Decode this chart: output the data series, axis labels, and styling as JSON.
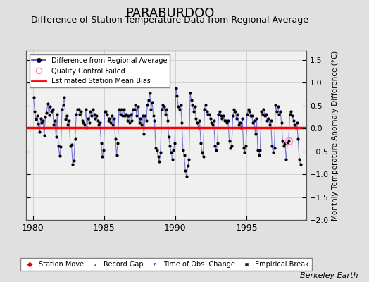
{
  "title": "PARABURDOO",
  "subtitle": "Difference of Station Temperature Data from Regional Average",
  "ylabel": "Monthly Temperature Anomaly Difference (°C)",
  "xlim": [
    1979.5,
    1999.2
  ],
  "ylim": [
    -2.0,
    1.7
  ],
  "yticks": [
    -2.0,
    -1.5,
    -1.0,
    -0.5,
    0.0,
    0.5,
    1.0,
    1.5
  ],
  "xticks": [
    1980,
    1985,
    1990,
    1995
  ],
  "bias_value": 0.02,
  "background_color": "#e0e0e0",
  "plot_bg_color": "#f0f0f0",
  "line_color": "#4444cc",
  "bias_color": "#ff0000",
  "marker_color": "#000000",
  "title_fontsize": 13,
  "subtitle_fontsize": 9,
  "berkeley_earth_text": "Berkeley Earth",
  "time_values": [
    1980.042,
    1980.125,
    1980.208,
    1980.292,
    1980.375,
    1980.458,
    1980.542,
    1980.625,
    1980.708,
    1980.792,
    1980.875,
    1980.958,
    1981.042,
    1981.125,
    1981.208,
    1981.292,
    1981.375,
    1981.458,
    1981.542,
    1981.625,
    1981.708,
    1981.792,
    1981.875,
    1981.958,
    1982.042,
    1982.125,
    1982.208,
    1982.292,
    1982.375,
    1982.458,
    1982.542,
    1982.625,
    1982.708,
    1982.792,
    1982.875,
    1982.958,
    1983.042,
    1983.125,
    1983.208,
    1983.292,
    1983.375,
    1983.458,
    1983.542,
    1983.625,
    1983.708,
    1983.792,
    1983.875,
    1983.958,
    1984.042,
    1984.125,
    1984.208,
    1984.292,
    1984.375,
    1984.458,
    1984.542,
    1984.625,
    1984.708,
    1984.792,
    1984.875,
    1984.958,
    1985.042,
    1985.125,
    1985.208,
    1985.292,
    1985.375,
    1985.458,
    1985.542,
    1985.625,
    1985.708,
    1985.792,
    1985.875,
    1985.958,
    1986.042,
    1986.125,
    1986.208,
    1986.292,
    1986.375,
    1986.458,
    1986.542,
    1986.625,
    1986.708,
    1986.792,
    1986.875,
    1986.958,
    1987.042,
    1987.125,
    1987.208,
    1987.292,
    1987.375,
    1987.458,
    1987.542,
    1987.625,
    1987.708,
    1987.792,
    1987.875,
    1987.958,
    1988.042,
    1988.125,
    1988.208,
    1988.292,
    1988.375,
    1988.458,
    1988.542,
    1988.625,
    1988.708,
    1988.792,
    1988.875,
    1988.958,
    1989.042,
    1989.125,
    1989.208,
    1989.292,
    1989.375,
    1989.458,
    1989.542,
    1989.625,
    1989.708,
    1989.792,
    1989.875,
    1989.958,
    1990.042,
    1990.125,
    1990.208,
    1990.292,
    1990.375,
    1990.458,
    1990.542,
    1990.625,
    1990.708,
    1990.792,
    1990.875,
    1990.958,
    1991.042,
    1991.125,
    1991.208,
    1991.292,
    1991.375,
    1991.458,
    1991.542,
    1991.625,
    1991.708,
    1991.792,
    1991.875,
    1991.958,
    1992.042,
    1992.125,
    1992.208,
    1992.292,
    1992.375,
    1992.458,
    1992.542,
    1992.625,
    1992.708,
    1992.792,
    1992.875,
    1992.958,
    1993.042,
    1993.125,
    1993.208,
    1993.292,
    1993.375,
    1993.458,
    1993.542,
    1993.625,
    1993.708,
    1993.792,
    1993.875,
    1993.958,
    1994.042,
    1994.125,
    1994.208,
    1994.292,
    1994.375,
    1994.458,
    1994.542,
    1994.625,
    1994.708,
    1994.792,
    1994.875,
    1994.958,
    1995.042,
    1995.125,
    1995.208,
    1995.292,
    1995.375,
    1995.458,
    1995.542,
    1995.625,
    1995.708,
    1995.792,
    1995.875,
    1995.958,
    1996.042,
    1996.125,
    1996.208,
    1996.292,
    1996.375,
    1996.458,
    1996.542,
    1996.625,
    1996.708,
    1996.792,
    1996.875,
    1996.958,
    1997.042,
    1997.125,
    1997.208,
    1997.292,
    1997.375,
    1997.458,
    1997.542,
    1997.625,
    1997.708,
    1997.792,
    1997.875,
    1997.958,
    1998.042,
    1998.125,
    1998.208,
    1998.292,
    1998.375,
    1998.458,
    1998.542,
    1998.625,
    1998.708,
    1998.792
  ],
  "diff_values": [
    0.68,
    0.38,
    0.2,
    0.28,
    0.1,
    -0.08,
    0.22,
    0.12,
    0.18,
    -0.15,
    0.25,
    0.35,
    0.55,
    0.3,
    0.48,
    0.38,
    0.42,
    0.08,
    0.18,
    -0.18,
    0.32,
    -0.38,
    -0.6,
    -0.4,
    0.42,
    0.52,
    0.68,
    0.2,
    0.28,
    0.08,
    0.18,
    -0.38,
    -0.35,
    -0.78,
    -0.7,
    -0.22,
    0.32,
    0.42,
    0.42,
    0.32,
    0.38,
    0.18,
    0.12,
    0.08,
    0.42,
    0.02,
    0.22,
    0.12,
    0.38,
    0.28,
    0.42,
    0.32,
    0.22,
    0.28,
    0.18,
    0.08,
    0.12,
    -0.32,
    -0.62,
    -0.48,
    0.38,
    0.38,
    0.32,
    0.18,
    0.22,
    0.12,
    0.28,
    0.08,
    0.22,
    -0.22,
    -0.58,
    -0.32,
    0.42,
    0.32,
    0.42,
    0.28,
    0.42,
    0.28,
    0.32,
    0.18,
    0.28,
    0.12,
    0.32,
    0.18,
    0.42,
    0.42,
    0.52,
    0.28,
    0.48,
    0.12,
    0.22,
    0.08,
    0.28,
    -0.12,
    0.28,
    0.18,
    0.52,
    0.62,
    0.78,
    0.42,
    0.58,
    0.28,
    0.18,
    -0.42,
    -0.48,
    -0.62,
    -0.72,
    -0.52,
    0.42,
    0.52,
    0.48,
    0.32,
    0.42,
    0.18,
    -0.18,
    -0.38,
    -0.52,
    -0.68,
    -0.48,
    -0.32,
    0.88,
    0.72,
    0.48,
    0.42,
    0.52,
    0.12,
    -0.48,
    -0.58,
    -0.92,
    -1.05,
    -0.82,
    -0.68,
    0.78,
    0.62,
    0.52,
    0.38,
    0.48,
    0.22,
    0.12,
    0.02,
    0.18,
    -0.32,
    -0.52,
    -0.62,
    0.42,
    0.52,
    0.38,
    0.32,
    0.32,
    0.22,
    0.12,
    0.08,
    0.18,
    -0.38,
    -0.48,
    -0.32,
    0.32,
    0.38,
    0.28,
    0.22,
    0.28,
    0.18,
    0.18,
    0.12,
    0.18,
    -0.28,
    -0.42,
    -0.38,
    0.28,
    0.42,
    0.38,
    0.22,
    0.32,
    0.08,
    0.12,
    0.02,
    0.22,
    -0.42,
    -0.52,
    -0.38,
    0.32,
    0.42,
    0.38,
    0.28,
    0.28,
    0.12,
    0.18,
    -0.12,
    0.22,
    -0.48,
    -0.58,
    -0.48,
    0.38,
    0.32,
    0.42,
    0.28,
    0.32,
    0.18,
    0.22,
    0.08,
    0.18,
    -0.38,
    -0.52,
    -0.42,
    0.52,
    0.38,
    0.48,
    0.32,
    0.38,
    0.12,
    -0.28,
    -0.38,
    -0.32,
    -0.68,
    -0.32,
    -0.28,
    0.32,
    0.38,
    0.28,
    0.18,
    0.08,
    0.02,
    0.12,
    -0.22,
    -0.68,
    -0.78
  ],
  "qc_failed_x": [
    1997.958
  ],
  "qc_failed_y": [
    -0.28
  ]
}
